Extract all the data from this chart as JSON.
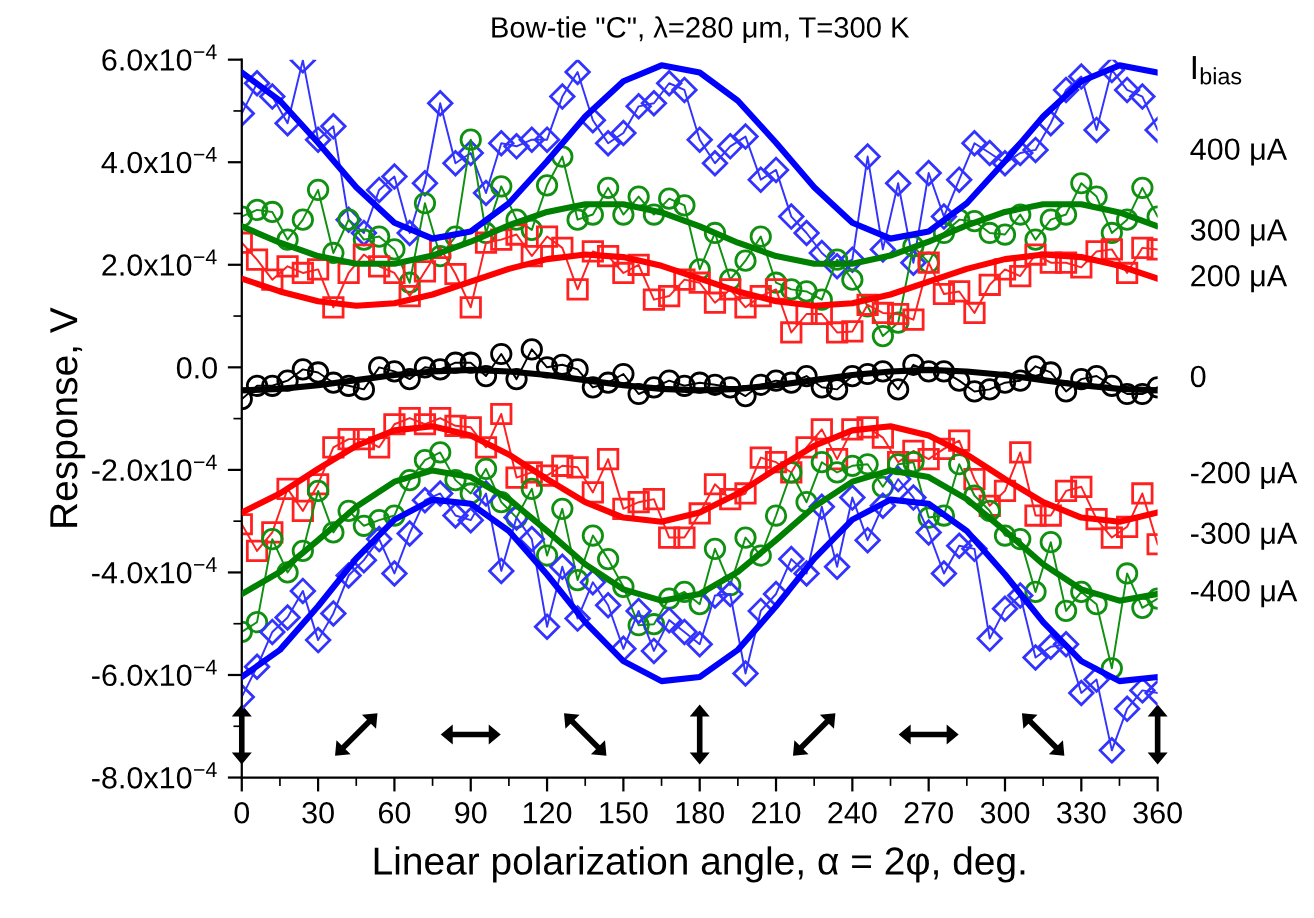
{
  "chart_data": {
    "type": "line",
    "title": "Bow-tie \"C\", λ=280 μm, T=300 K",
    "xlabel": "Linear polarization angle, α = 2φ, deg.",
    "ylabel": "Response, V",
    "legend_title": "I$_{bias}$",
    "xlim": [
      0,
      360
    ],
    "xticks": [
      0,
      30,
      60,
      90,
      120,
      150,
      180,
      210,
      240,
      270,
      300,
      330,
      360
    ],
    "ylim": [
      -0.0008,
      0.0006
    ],
    "yticks": [
      {
        "value": -0.0008,
        "label": "-8.0x10$^{−4}$"
      },
      {
        "value": -0.0006,
        "label": "-6.0x10$^{−4}$"
      },
      {
        "value": -0.0004,
        "label": "-4.0x10$^{−4}$"
      },
      {
        "value": -0.0002,
        "label": "-2.0x10$^{−4}$"
      },
      {
        "value": 0,
        "label": "0.0"
      },
      {
        "value": 0.0002,
        "label": "2.0x10$^{−4}$"
      },
      {
        "value": 0.0004,
        "label": "4.0x10$^{−4}$"
      },
      {
        "value": 0.0006,
        "label": "6.0x10$^{−4}$"
      }
    ],
    "grid": false,
    "legend": false,
    "line_style": "solid",
    "x": [
      0,
      6,
      12,
      18,
      24,
      30,
      36,
      42,
      48,
      54,
      60,
      66,
      72,
      78,
      84,
      90,
      96,
      102,
      108,
      114,
      120,
      126,
      132,
      138,
      144,
      150,
      156,
      162,
      168,
      174,
      180,
      186,
      192,
      198,
      204,
      210,
      216,
      222,
      228,
      234,
      240,
      246,
      252,
      258,
      264,
      270,
      276,
      282,
      288,
      294,
      300,
      306,
      312,
      318,
      324,
      330,
      336,
      342,
      348,
      354,
      360
    ],
    "series": [
      {
        "name": "400 μA",
        "marker": "diamond",
        "color": "#3333ff",
        "values": [
          0.000495,
          0.000554,
          0.000528,
          0.000476,
          0.000599,
          0.000444,
          0.00047,
          0.000288,
          0.000262,
          0.000346,
          0.000372,
          0.000262,
          0.000359,
          0.000515,
          0.000398,
          0.000418,
          0.00034,
          0.000437,
          0.000431,
          0.000444,
          0.000444,
          0.000528,
          0.000576,
          0.000482,
          0.000437,
          0.000457,
          0.000509,
          0.000515,
          0.000554,
          0.000541,
          0.000444,
          0.000398,
          0.000431,
          0.00045,
          0.000366,
          0.000385,
          0.000294,
          0.000262,
          0.000223,
          0.000197,
          0.00021,
          0.000411,
          0.00023,
          0.000359,
          0.000204,
          0.000379,
          0.000294,
          0.000366,
          0.000437,
          0.000418,
          0.000398,
          0.000418,
          0.000424,
          0.000476,
          0.000541,
          0.000567,
          0.000463,
          0.00058,
          0.000541,
          0.000528,
          0.000463
        ]
      },
      {
        "name": "300 μA",
        "marker": "circle",
        "color": "#109010",
        "values": [
          0.000294,
          0.000307,
          0.000303,
          0.000249,
          0.000288,
          0.000346,
          0.000223,
          0.000288,
          0.000249,
          0.000255,
          0.00023,
          0.000165,
          0.00032,
          0.000217,
          0.000255,
          0.000444,
          0.000262,
          0.000353,
          0.000288,
          0.000268,
          0.000355,
          0.000411,
          0.000288,
          0.000298,
          0.00035,
          0.000298,
          0.000333,
          0.000298,
          0.000329,
          0.000316,
          0.000191,
          0.000262,
          0.000171,
          0.000208,
          0.000255,
          0.000165,
          0.000152,
          0.000148,
          0.000132,
          0.00021,
          0.000171,
          0.000119,
          6.1e-05,
          8.7e-05,
          0.000236,
          0.000204,
          0.000262,
          0.000288,
          0.000285,
          0.000262,
          0.000259,
          0.000298,
          0.000249,
          0.000288,
          0.000298,
          0.000359,
          0.000333,
          0.000262,
          0.000288,
          0.00035,
          0.000294
        ]
      },
      {
        "name": "200 μA",
        "marker": "square",
        "color": "#ff2020",
        "values": [
          0.000243,
          0.00021,
          0.000171,
          0.000197,
          0.000184,
          0.000191,
          0.000117,
          0.000184,
          0.00022,
          0.000197,
          0.000184,
          0.000139,
          0.000187,
          0.000233,
          0.000182,
          0.000117,
          0.000243,
          0.000249,
          0.000259,
          0.000217,
          0.000255,
          0.000233,
          0.000152,
          0.000226,
          0.000217,
          0.000184,
          0.0002,
          0.000132,
          0.000139,
          0.000171,
          0.000165,
          0.000126,
          0.000152,
          0.000117,
          0.000139,
          0.000152,
          6.8e-05,
          0.000104,
          0.000104,
          6.8e-05,
          7e-05,
          0.000122,
          0.000106,
          0.000104,
          9.3e-05,
          0.000204,
          0.000143,
          0.000148,
          0.000106,
          0.000161,
          0.000191,
          0.000178,
          0.00022,
          0.000204,
          0.000204,
          0.000195,
          0.000226,
          0.00023,
          0.000184,
          0.000233,
          0.00023
        ]
      },
      {
        "name": "0",
        "marker": "circle",
        "color": "#000000",
        "values": [
          -6.2e-05,
          -3.6e-05,
          -3.6e-05,
          -2.6e-05,
          -4e-06,
          -1e-05,
          -3e-05,
          -3.6e-05,
          -4.3e-05,
          0.0,
          -8e-06,
          -2.3e-05,
          0.0,
          -4e-06,
          9e-06,
          9e-06,
          -1.7e-05,
          2.6e-05,
          -2.3e-05,
          3.5e-05,
          0.0,
          5e-06,
          -4e-06,
          -3.9e-05,
          -3e-05,
          -1.3e-05,
          -5.2e-05,
          -3.9e-05,
          -2.6e-05,
          -3.6e-05,
          -3e-05,
          -3.4e-05,
          -3.9e-05,
          -5.6e-05,
          -3.4e-05,
          -2.6e-05,
          -3e-05,
          -1.7e-05,
          -3.9e-05,
          -4.3e-05,
          -1.7e-05,
          -1.3e-05,
          -8e-06,
          -4.3e-05,
          5e-06,
          -8e-06,
          -8e-06,
          -2.6e-05,
          -4.7e-05,
          -4.3e-05,
          -3e-05,
          -2.6e-05,
          2e-06,
          -1e-05,
          -4.7e-05,
          -2.3e-05,
          -1.7e-05,
          -3.6e-05,
          -5.2e-05,
          -5.2e-05,
          -3.9e-05
        ]
      },
      {
        "name": "-200 μA",
        "marker": "square",
        "color": "#ff2020",
        "values": [
          -0.000306,
          -0.000358,
          -0.000322,
          -0.000237,
          -0.00028,
          -0.000228,
          -0.000156,
          -0.00014,
          -0.00014,
          -0.000156,
          -0.000111,
          -9.9e-05,
          -0.000111,
          -9.9e-05,
          -0.000114,
          -0.000117,
          -0.000156,
          -9.1e-05,
          -0.000215,
          -0.000205,
          -0.000211,
          -0.000192,
          -0.000195,
          -0.000244,
          -0.000179,
          -0.000276,
          -0.000263,
          -0.000257,
          -0.000332,
          -0.000332,
          -0.000285,
          -0.000228,
          -0.000257,
          -0.000246,
          -0.000176,
          -0.000185,
          -0.000205,
          -0.000156,
          -0.000121,
          -0.000179,
          -0.000121,
          -0.000117,
          -0.000137,
          -0.000185,
          -0.000163,
          -0.000179,
          -0.000159,
          -0.000143,
          -0.000218,
          -0.00027,
          -0.000241,
          -0.000166,
          -0.000289,
          -0.000289,
          -0.000241,
          -0.000233,
          -0.000296,
          -0.000332,
          -0.000311,
          -0.000246,
          -0.000345
        ]
      },
      {
        "name": "-300 μA",
        "marker": "circle",
        "color": "#109010",
        "values": [
          -0.000516,
          -0.000497,
          -0.000335,
          -0.0004,
          -0.000358,
          -0.000241,
          -0.000322,
          -0.00028,
          -0.000309,
          -0.000298,
          -0.000289,
          -0.00022,
          -0.000181,
          -0.000166,
          -0.00022,
          -0.000246,
          -0.000198,
          -0.000263,
          -0.000293,
          -0.000237,
          -0.000367,
          -0.000276,
          -0.000415,
          -0.000328,
          -0.000374,
          -0.000428,
          -0.000503,
          -0.000501,
          -0.000451,
          -0.000438,
          -0.000462,
          -0.000354,
          -0.000425,
          -0.000332,
          -0.000367,
          -0.000289,
          -0.000205,
          -0.000263,
          -0.000185,
          -0.000205,
          -0.000192,
          -0.000189,
          -0.000233,
          -0.000189,
          -0.000185,
          -0.000293,
          -0.000289,
          -0.000189,
          -0.00025,
          -0.00028,
          -0.000328,
          -0.000335,
          -0.000438,
          -0.000341,
          -0.000475,
          -0.000438,
          -0.000462,
          -0.000587,
          -0.000402,
          -0.000469,
          -0.000451
        ]
      },
      {
        "name": "-400 μA",
        "marker": "diamond",
        "color": "#3333ff",
        "values": [
          -0.000643,
          -0.000584,
          -0.000516,
          -0.000488,
          -0.000436,
          -0.000532,
          -0.00048,
          -0.000406,
          -0.000376,
          -0.000335,
          -0.000402,
          -0.000324,
          -0.000259,
          -0.000246,
          -0.000289,
          -0.000298,
          -0.000246,
          -0.000397,
          -0.000293,
          -0.000335,
          -0.000506,
          -0.000389,
          -0.00049,
          -0.000419,
          -0.000464,
          -0.000549,
          -0.000475,
          -0.000553,
          -0.000493,
          -0.000516,
          -0.00054,
          -0.000445,
          -0.000442,
          -0.000597,
          -0.000475,
          -0.000442,
          -0.000374,
          -0.000402,
          -0.000272,
          -0.000389,
          -0.000254,
          -0.000337,
          -0.00027,
          -0.000218,
          -0.000254,
          -0.000322,
          -0.000402,
          -0.000348,
          -0.000354,
          -0.000529,
          -0.000471,
          -0.000445,
          -0.000566,
          -0.000545,
          -0.00054,
          -0.000635,
          -0.000609,
          -0.000747,
          -0.000666,
          -0.00063,
          -0.000635
        ]
      },
      {
        "marker": "none",
        "color": "#0000ff",
        "x": [
          0,
          15,
          30,
          45,
          60,
          75,
          90,
          105,
          120,
          135,
          150,
          165,
          180,
          195,
          210,
          225,
          240,
          255,
          270,
          285,
          300,
          315,
          330,
          345,
          360
        ],
        "values": [
          0.000575,
          0.00052,
          0.000438,
          0.000351,
          0.000282,
          0.000251,
          0.000265,
          0.00032,
          0.000402,
          0.000489,
          0.000558,
          0.000589,
          0.000575,
          0.00052,
          0.000438,
          0.000351,
          0.000282,
          0.000251,
          0.000265,
          0.00032,
          0.000402,
          0.000489,
          0.000558,
          0.000589,
          0.000575
        ]
      },
      {
        "marker": "none",
        "color": "#008000",
        "x": [
          0,
          15,
          30,
          45,
          60,
          75,
          90,
          105,
          120,
          135,
          150,
          165,
          180,
          195,
          210,
          225,
          240,
          255,
          270,
          285,
          300,
          315,
          330,
          345,
          360
        ],
        "values": [
          0.000275,
          0.000243,
          0.000217,
          0.000202,
          0.000202,
          0.000218,
          0.000245,
          0.000277,
          0.000303,
          0.000318,
          0.000318,
          0.000302,
          0.000275,
          0.000243,
          0.000217,
          0.000202,
          0.000202,
          0.000218,
          0.000245,
          0.000277,
          0.000303,
          0.000318,
          0.000318,
          0.000302,
          0.000275
        ]
      },
      {
        "marker": "none",
        "color": "#ff0000",
        "x": [
          0,
          15,
          30,
          45,
          60,
          75,
          90,
          105,
          120,
          135,
          150,
          165,
          180,
          195,
          210,
          225,
          240,
          255,
          270,
          285,
          300,
          315,
          330,
          345,
          360
        ],
        "values": [
          0.000173,
          0.000148,
          0.000129,
          0.00012,
          0.000125,
          0.000142,
          0.000167,
          0.000192,
          0.000211,
          0.00022,
          0.000215,
          0.000198,
          0.000173,
          0.000148,
          0.000129,
          0.00012,
          0.000125,
          0.000142,
          0.000167,
          0.000192,
          0.000211,
          0.00022,
          0.000215,
          0.000198,
          0.000173
        ]
      },
      {
        "marker": "none",
        "color": "#000000",
        "x": [
          0,
          15,
          30,
          45,
          60,
          75,
          90,
          105,
          120,
          135,
          150,
          165,
          180,
          195,
          210,
          225,
          240,
          255,
          270,
          285,
          300,
          315,
          330,
          345,
          360
        ],
        "values": [
          -4.5e-05,
          -4.2e-05,
          -3.5e-05,
          -2.5e-05,
          -1.5e-05,
          -8e-06,
          -5e-06,
          -8e-06,
          -1.5e-05,
          -2.5e-05,
          -3.5e-05,
          -4.2e-05,
          -4.5e-05,
          -4.2e-05,
          -3.5e-05,
          -2.5e-05,
          -1.5e-05,
          -8e-06,
          -5e-06,
          -8e-06,
          -1.5e-05,
          -2.5e-05,
          -3.5e-05,
          -4.2e-05,
          -4.5e-05
        ]
      },
      {
        "marker": "none",
        "color": "#ff0000",
        "x": [
          0,
          15,
          30,
          45,
          60,
          75,
          90,
          105,
          120,
          135,
          150,
          165,
          180,
          195,
          210,
          225,
          240,
          255,
          270,
          285,
          300,
          315,
          330,
          345,
          360
        ],
        "values": [
          -0.000283,
          -0.000246,
          -0.000198,
          -0.000153,
          -0.000123,
          -0.000115,
          -0.000133,
          -0.00017,
          -0.000218,
          -0.000263,
          -0.000293,
          -0.000301,
          -0.000283,
          -0.000246,
          -0.000198,
          -0.000153,
          -0.000123,
          -0.000115,
          -0.000133,
          -0.00017,
          -0.000218,
          -0.000263,
          -0.000293,
          -0.000301,
          -0.000283
        ]
      },
      {
        "marker": "none",
        "color": "#008000",
        "x": [
          0,
          15,
          30,
          45,
          60,
          75,
          90,
          105,
          120,
          135,
          150,
          165,
          180,
          195,
          210,
          225,
          240,
          255,
          270,
          285,
          300,
          315,
          330,
          345,
          360
        ],
        "values": [
          -0.000442,
          -0.000399,
          -0.000337,
          -0.000272,
          -0.000223,
          -0.000201,
          -0.000214,
          -0.000257,
          -0.000319,
          -0.000384,
          -0.000433,
          -0.000455,
          -0.000442,
          -0.000399,
          -0.000337,
          -0.000272,
          -0.000223,
          -0.000201,
          -0.000214,
          -0.000257,
          -0.000319,
          -0.000384,
          -0.000433,
          -0.000455,
          -0.000442
        ]
      },
      {
        "marker": "none",
        "color": "#0000ff",
        "x": [
          0,
          15,
          30,
          45,
          60,
          75,
          90,
          105,
          120,
          135,
          150,
          165,
          180,
          195,
          210,
          225,
          240,
          255,
          270,
          285,
          300,
          315,
          330,
          345,
          360
        ],
        "values": [
          -0.000604,
          -0.000551,
          -0.000466,
          -0.000373,
          -0.000297,
          -0.000258,
          -0.000266,
          -0.000319,
          -0.000404,
          -0.000497,
          -0.000573,
          -0.000612,
          -0.000604,
          -0.000551,
          -0.000466,
          -0.000373,
          -0.000297,
          -0.000258,
          -0.000266,
          -0.000319,
          -0.000404,
          -0.000497,
          -0.000573,
          -0.000612,
          -0.000604
        ]
      }
    ]
  }
}
